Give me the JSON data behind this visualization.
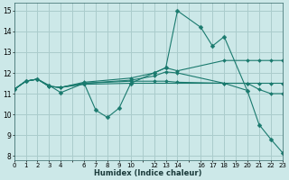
{
  "xlabel": "Humidex (Indice chaleur)",
  "background_color": "#cce8e8",
  "grid_color": "#aacccc",
  "line_color": "#1a7a6e",
  "xlim": [
    0,
    23
  ],
  "ylim": [
    7.8,
    15.4
  ],
  "yticks": [
    8,
    9,
    10,
    11,
    12,
    13,
    14,
    15
  ],
  "xticks": [
    0,
    1,
    2,
    3,
    4,
    5,
    6,
    7,
    8,
    9,
    10,
    11,
    12,
    13,
    14,
    15,
    16,
    17,
    18,
    19,
    20,
    21,
    22,
    23
  ],
  "xtick_labels": [
    "0",
    "1",
    "2",
    "3",
    "4",
    "",
    "6",
    "7",
    "8",
    "9",
    "10",
    "",
    "12",
    "13",
    "14",
    "",
    "16",
    "17",
    "18",
    "19",
    "20",
    "21",
    "22",
    "23"
  ],
  "curves": [
    {
      "x": [
        0,
        1,
        2,
        3,
        4,
        6,
        7,
        8,
        9,
        10,
        12,
        13,
        14,
        16,
        17,
        18,
        20,
        21,
        22,
        23
      ],
      "y": [
        11.2,
        11.6,
        11.7,
        11.4,
        11.05,
        11.5,
        10.2,
        9.85,
        10.3,
        11.5,
        12.0,
        12.25,
        15.0,
        14.2,
        13.3,
        13.75,
        11.12,
        9.5,
        8.8,
        8.15
      ],
      "has_marker": true,
      "markersize": 2.5
    },
    {
      "x": [
        0,
        1,
        2,
        3,
        4,
        6,
        10,
        12,
        13,
        14,
        18,
        20
      ],
      "y": [
        11.2,
        11.6,
        11.7,
        11.35,
        11.3,
        11.45,
        11.5,
        11.5,
        11.5,
        11.5,
        11.5,
        11.15
      ],
      "has_marker": false,
      "markersize": 0
    },
    {
      "x": [
        0,
        1,
        2,
        3,
        4,
        6,
        10,
        12,
        13,
        14,
        18,
        20,
        21,
        22,
        23
      ],
      "y": [
        11.2,
        11.6,
        11.7,
        11.35,
        11.3,
        11.55,
        11.75,
        12.0,
        12.25,
        12.1,
        12.6,
        12.6,
        12.6,
        12.6,
        12.6
      ],
      "has_marker": true,
      "markersize": 2.0
    },
    {
      "x": [
        0,
        1,
        2,
        3,
        4,
        6,
        10,
        12,
        13,
        14,
        18,
        20,
        21,
        22,
        23
      ],
      "y": [
        11.2,
        11.6,
        11.7,
        11.35,
        11.3,
        11.5,
        11.6,
        11.6,
        11.6,
        11.55,
        11.5,
        11.5,
        11.5,
        11.5,
        11.5
      ],
      "has_marker": true,
      "markersize": 2.0
    },
    {
      "x": [
        0,
        1,
        2,
        3,
        4,
        6,
        10,
        12,
        13,
        14,
        18,
        20,
        21,
        22,
        23
      ],
      "y": [
        11.2,
        11.6,
        11.7,
        11.35,
        11.3,
        11.5,
        11.65,
        11.85,
        12.05,
        12.0,
        11.5,
        11.5,
        11.2,
        11.0,
        11.0
      ],
      "has_marker": true,
      "markersize": 2.0
    }
  ]
}
